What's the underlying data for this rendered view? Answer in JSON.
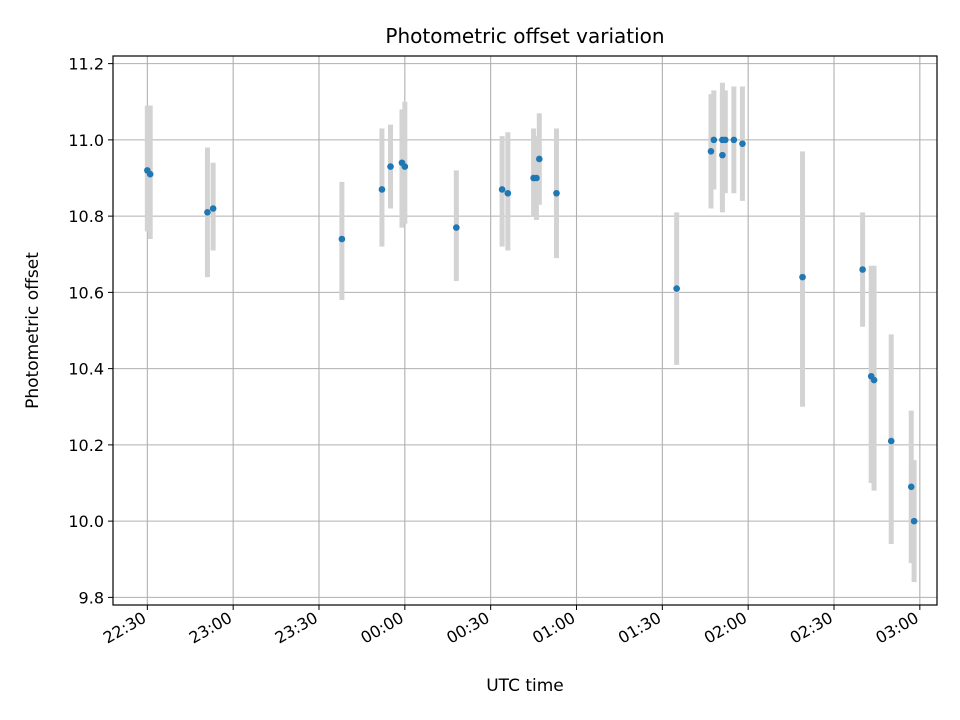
{
  "chart_data": {
    "type": "scatter",
    "title": "Photometric offset variation",
    "xlabel": "UTC time",
    "ylabel": "Photometric offset",
    "x_ticks": [
      "22:30",
      "23:00",
      "23:30",
      "00:00",
      "00:30",
      "01:00",
      "01:30",
      "02:00",
      "02:30",
      "03:00"
    ],
    "y_ticks": [
      "9.8",
      "10.0",
      "10.2",
      "10.4",
      "10.6",
      "10.8",
      "11.0",
      "11.2"
    ],
    "grid": true,
    "colors": {
      "points": "#1f77b4",
      "error_bars": "#d3d3d3",
      "grid": "#b0b0b0",
      "axes": "#000000"
    },
    "xlim": [
      "22:18",
      "03:06"
    ],
    "ylim": [
      9.78,
      11.22
    ],
    "points": [
      {
        "time": "22:30",
        "y": 10.92,
        "err_low": 10.76,
        "err_high": 11.09
      },
      {
        "time": "22:31",
        "y": 10.91,
        "err_low": 10.74,
        "err_high": 11.09
      },
      {
        "time": "22:51",
        "y": 10.81,
        "err_low": 10.64,
        "err_high": 10.98
      },
      {
        "time": "22:53",
        "y": 10.82,
        "err_low": 10.71,
        "err_high": 10.94
      },
      {
        "time": "23:38",
        "y": 10.74,
        "err_low": 10.58,
        "err_high": 10.89
      },
      {
        "time": "23:52",
        "y": 10.87,
        "err_low": 10.72,
        "err_high": 11.03
      },
      {
        "time": "23:55",
        "y": 10.93,
        "err_low": 10.82,
        "err_high": 11.04
      },
      {
        "time": "23:59",
        "y": 10.94,
        "err_low": 10.77,
        "err_high": 11.08
      },
      {
        "time": "00:00",
        "y": 10.93,
        "err_low": 10.78,
        "err_high": 11.1
      },
      {
        "time": "00:18",
        "y": 10.77,
        "err_low": 10.63,
        "err_high": 10.92
      },
      {
        "time": "00:34",
        "y": 10.87,
        "err_low": 10.72,
        "err_high": 11.01
      },
      {
        "time": "00:36",
        "y": 10.86,
        "err_low": 10.71,
        "err_high": 11.02
      },
      {
        "time": "00:45",
        "y": 10.9,
        "err_low": 10.8,
        "err_high": 11.03
      },
      {
        "time": "00:46",
        "y": 10.9,
        "err_low": 10.79,
        "err_high": 11.01
      },
      {
        "time": "00:47",
        "y": 10.95,
        "err_low": 10.83,
        "err_high": 11.07
      },
      {
        "time": "00:53",
        "y": 10.86,
        "err_low": 10.69,
        "err_high": 11.03
      },
      {
        "time": "01:35",
        "y": 10.61,
        "err_low": 10.41,
        "err_high": 10.81
      },
      {
        "time": "01:47",
        "y": 10.97,
        "err_low": 10.82,
        "err_high": 11.12
      },
      {
        "time": "01:48",
        "y": 11.0,
        "err_low": 10.87,
        "err_high": 11.13
      },
      {
        "time": "01:51",
        "y": 11.0,
        "err_low": 10.84,
        "err_high": 11.15
      },
      {
        "time": "01:51",
        "y": 10.96,
        "err_low": 10.81,
        "err_high": 11.13
      },
      {
        "time": "01:52",
        "y": 11.0,
        "err_low": 10.86,
        "err_high": 11.13
      },
      {
        "time": "01:55",
        "y": 11.0,
        "err_low": 10.86,
        "err_high": 11.14
      },
      {
        "time": "01:58",
        "y": 10.99,
        "err_low": 10.84,
        "err_high": 11.14
      },
      {
        "time": "02:19",
        "y": 10.64,
        "err_low": 10.3,
        "err_high": 10.97
      },
      {
        "time": "02:40",
        "y": 10.66,
        "err_low": 10.51,
        "err_high": 10.81
      },
      {
        "time": "02:43",
        "y": 10.38,
        "err_low": 10.1,
        "err_high": 10.67
      },
      {
        "time": "02:44",
        "y": 10.37,
        "err_low": 10.08,
        "err_high": 10.67
      },
      {
        "time": "02:50",
        "y": 10.21,
        "err_low": 9.94,
        "err_high": 10.49
      },
      {
        "time": "02:57",
        "y": 10.09,
        "err_low": 9.89,
        "err_high": 10.29
      },
      {
        "time": "02:58",
        "y": 10.0,
        "err_low": 9.84,
        "err_high": 10.16
      }
    ]
  }
}
